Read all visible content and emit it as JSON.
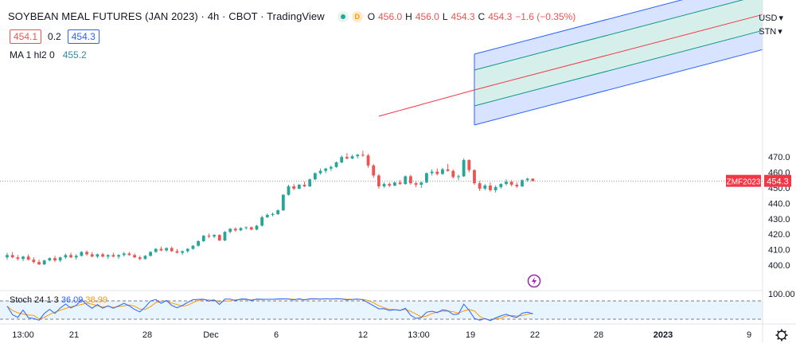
{
  "header": {
    "title": "SOYBEAN MEAL FUTURES (JAN 2023) · 4h · CBOT · TradingView",
    "ohlc": [
      {
        "k": "O",
        "v": "456.0"
      },
      {
        "k": "H",
        "v": "456.0"
      },
      {
        "k": "L",
        "v": "454.3"
      },
      {
        "k": "C",
        "v": "454.3"
      },
      {
        "k": "",
        "v": "−1.6 (−0.35%)"
      }
    ],
    "delay_badge": "D"
  },
  "quote": {
    "bid": "454.1",
    "spread": "0.2",
    "ask": "454.3"
  },
  "indicator": {
    "ma_label": "MA 1 hl2 0",
    "ma_value": "455.2"
  },
  "top_right": {
    "currency": "USD",
    "unit": "STN"
  },
  "price_axis": {
    "ticks": [
      "470.0",
      "460.0",
      "450.0",
      "440.0",
      "430.0",
      "420.0",
      "410.0",
      "400.0"
    ],
    "symbol_tag": "ZMF2023",
    "last_price": "454.3",
    "stoch_tick": "100.00"
  },
  "time_axis": {
    "labels": [
      "13:00",
      "21",
      "28",
      "Dec",
      "6",
      "12",
      "13:00",
      "19",
      "22",
      "28",
      "2023",
      "9"
    ]
  },
  "stoch": {
    "label": "Stoch 24 1 3",
    "k_value": "36.09",
    "d_value": "38.99"
  },
  "colors": {
    "up": "#26a69a",
    "down": "#ef5350",
    "pitchfork_outer": "#2962ff",
    "pitchfork_inner": "#089981",
    "median": "#f23645",
    "stoch_k": "#2962ff",
    "stoch_d": "#ff9800",
    "last_price_tag": "#f23645"
  },
  "chart_data": {
    "type": "candlestick",
    "symbol": "ZMF2023",
    "interval": "4h",
    "ylim": [
      396,
      476
    ],
    "candles": [
      [
        405.0,
        408.0,
        403.5,
        406.5
      ],
      [
        406.5,
        408.5,
        404.5,
        405.0
      ],
      [
        405.0,
        406.5,
        403.0,
        404.0
      ],
      [
        404.0,
        406.0,
        402.5,
        405.5
      ],
      [
        405.5,
        407.0,
        403.0,
        403.5
      ],
      [
        403.5,
        405.0,
        401.0,
        402.0
      ],
      [
        402.0,
        403.5,
        400.0,
        400.5
      ],
      [
        400.5,
        403.5,
        400.0,
        403.0
      ],
      [
        403.0,
        405.0,
        402.5,
        404.5
      ],
      [
        404.5,
        406.0,
        402.0,
        403.0
      ],
      [
        403.0,
        405.5,
        402.0,
        405.0
      ],
      [
        405.0,
        407.5,
        404.0,
        406.5
      ],
      [
        406.5,
        408.0,
        404.5,
        405.0
      ],
      [
        405.0,
        407.0,
        403.5,
        406.0
      ],
      [
        406.0,
        409.0,
        405.5,
        408.5
      ],
      [
        408.5,
        409.5,
        406.0,
        407.0
      ],
      [
        407.0,
        408.5,
        405.0,
        405.5
      ],
      [
        405.5,
        407.5,
        404.5,
        407.0
      ],
      [
        407.0,
        408.0,
        405.0,
        405.5
      ],
      [
        405.5,
        407.0,
        404.0,
        406.5
      ],
      [
        406.5,
        408.0,
        405.0,
        405.5
      ],
      [
        405.5,
        407.0,
        404.0,
        406.5
      ],
      [
        406.5,
        408.5,
        405.5,
        407.5
      ],
      [
        407.5,
        408.5,
        406.0,
        406.5
      ],
      [
        406.5,
        407.5,
        404.5,
        405.0
      ],
      [
        405.0,
        406.0,
        403.0,
        404.0
      ],
      [
        404.0,
        406.5,
        403.5,
        406.0
      ],
      [
        406.0,
        409.0,
        405.5,
        408.5
      ],
      [
        408.5,
        411.0,
        408.0,
        410.5
      ],
      [
        410.5,
        412.0,
        409.0,
        409.5
      ],
      [
        409.5,
        411.5,
        408.5,
        411.0
      ],
      [
        411.0,
        412.0,
        408.5,
        409.0
      ],
      [
        409.0,
        410.5,
        407.5,
        408.0
      ],
      [
        408.0,
        409.5,
        406.5,
        409.0
      ],
      [
        409.0,
        411.0,
        408.0,
        410.5
      ],
      [
        410.5,
        413.0,
        410.0,
        412.5
      ],
      [
        412.5,
        416.0,
        412.0,
        415.5
      ],
      [
        415.5,
        419.5,
        415.0,
        419.0
      ],
      [
        419.0,
        420.5,
        417.5,
        418.5
      ],
      [
        418.5,
        420.0,
        417.5,
        419.5
      ],
      [
        419.5,
        420.0,
        415.5,
        416.0
      ],
      [
        416.0,
        422.0,
        415.5,
        421.5
      ],
      [
        421.5,
        424.0,
        420.5,
        423.5
      ],
      [
        423.5,
        424.5,
        421.5,
        422.5
      ],
      [
        422.5,
        424.5,
        422.0,
        424.0
      ],
      [
        424.0,
        425.0,
        423.0,
        424.5
      ],
      [
        424.5,
        425.0,
        422.5,
        423.0
      ],
      [
        423.0,
        426.0,
        422.5,
        425.5
      ],
      [
        425.5,
        432.0,
        425.0,
        431.0
      ],
      [
        431.0,
        433.5,
        430.5,
        432.5
      ],
      [
        432.5,
        434.0,
        431.5,
        433.0
      ],
      [
        433.0,
        436.0,
        432.5,
        435.5
      ],
      [
        435.5,
        446.0,
        435.0,
        445.5
      ],
      [
        445.5,
        452.0,
        445.0,
        451.0
      ],
      [
        451.0,
        452.5,
        448.5,
        449.5
      ],
      [
        449.5,
        452.5,
        449.0,
        452.0
      ],
      [
        452.0,
        454.0,
        450.5,
        451.0
      ],
      [
        451.0,
        456.0,
        450.5,
        455.5
      ],
      [
        455.5,
        460.0,
        455.0,
        459.5
      ],
      [
        459.5,
        462.5,
        458.5,
        461.0
      ],
      [
        461.0,
        463.0,
        459.5,
        462.5
      ],
      [
        462.5,
        464.5,
        461.0,
        463.5
      ],
      [
        463.5,
        467.0,
        463.0,
        466.5
      ],
      [
        466.5,
        471.0,
        466.0,
        470.0
      ],
      [
        470.0,
        472.5,
        468.5,
        469.0
      ],
      [
        469.0,
        471.5,
        468.5,
        470.5
      ],
      [
        470.5,
        472.0,
        469.0,
        471.5
      ],
      [
        471.5,
        474.0,
        470.0,
        471.0
      ],
      [
        471.0,
        472.0,
        463.0,
        464.5
      ],
      [
        464.5,
        465.5,
        456.5,
        458.0
      ],
      [
        458.0,
        459.0,
        449.5,
        451.0
      ],
      [
        451.0,
        453.5,
        450.0,
        452.5
      ],
      [
        452.5,
        453.5,
        450.5,
        451.5
      ],
      [
        451.5,
        454.0,
        451.0,
        453.5
      ],
      [
        453.5,
        455.0,
        452.0,
        452.5
      ],
      [
        452.5,
        458.0,
        452.0,
        457.5
      ],
      [
        457.5,
        458.5,
        452.0,
        453.0
      ],
      [
        453.0,
        454.5,
        450.5,
        452.0
      ],
      [
        452.0,
        454.0,
        450.0,
        453.5
      ],
      [
        453.5,
        460.0,
        453.0,
        459.5
      ],
      [
        459.5,
        462.0,
        458.0,
        460.5
      ],
      [
        460.5,
        462.5,
        458.0,
        459.0
      ],
      [
        459.0,
        463.0,
        458.5,
        462.0
      ],
      [
        462.0,
        465.5,
        460.5,
        461.0
      ],
      [
        461.0,
        462.0,
        456.0,
        457.0
      ],
      [
        457.0,
        458.5,
        455.0,
        457.5
      ],
      [
        457.5,
        469.0,
        457.0,
        468.0
      ],
      [
        468.0,
        468.5,
        460.0,
        461.5
      ],
      [
        461.5,
        462.0,
        452.0,
        453.0
      ],
      [
        453.0,
        454.5,
        448.0,
        449.5
      ],
      [
        449.5,
        452.5,
        448.5,
        451.5
      ],
      [
        451.5,
        453.5,
        447.5,
        448.5
      ],
      [
        448.5,
        451.5,
        447.0,
        450.5
      ],
      [
        450.5,
        453.0,
        449.5,
        452.5
      ],
      [
        452.5,
        455.5,
        451.5,
        454.0
      ],
      [
        454.0,
        455.0,
        451.0,
        452.0
      ],
      [
        452.0,
        453.5,
        450.0,
        451.0
      ],
      [
        451.0,
        455.5,
        450.5,
        455.0
      ],
      [
        455.0,
        456.5,
        454.0,
        456.0
      ],
      [
        456.0,
        456.0,
        454.3,
        454.3
      ]
    ],
    "pitchfork_channel": "upward, from Dec 12 into January"
  }
}
